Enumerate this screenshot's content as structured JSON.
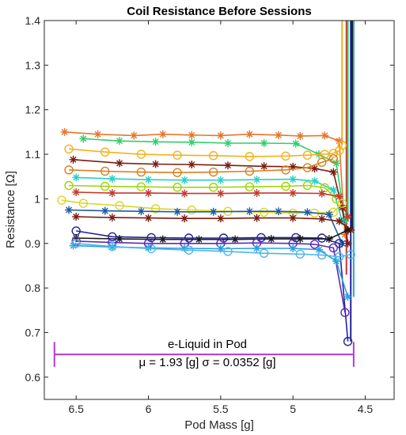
{
  "chart_data": {
    "type": "line",
    "title": "Coil Resistance Before Sessions",
    "xlabel": "Pod Mass [g]",
    "ylabel": "Resistance [Ω]",
    "x_reversed": true,
    "xlim": [
      4.3,
      6.72
    ],
    "ylim": [
      0.55,
      1.4
    ],
    "xticks": [
      {
        "value": 6.5,
        "label": "6.5"
      },
      {
        "value": 6.0,
        "label": "6"
      },
      {
        "value": 5.5,
        "label": "5.5"
      },
      {
        "value": 5.0,
        "label": "5"
      },
      {
        "value": 4.5,
        "label": "4.5"
      }
    ],
    "yticks": [
      {
        "value": 0.6,
        "label": "0.6"
      },
      {
        "value": 0.7,
        "label": "0.7"
      },
      {
        "value": 0.8,
        "label": "0.8"
      },
      {
        "value": 0.9,
        "label": "0.9"
      },
      {
        "value": 1.0,
        "label": "1"
      },
      {
        "value": 1.1,
        "label": "1.1"
      },
      {
        "value": 1.2,
        "label": "1.2"
      },
      {
        "value": 1.3,
        "label": "1.3"
      },
      {
        "value": 1.4,
        "label": "1.4"
      }
    ],
    "grid": false,
    "series": [
      {
        "color": "#e8762b",
        "marker": "star",
        "x": [
          6.58,
          6.35,
          6.1,
          5.9,
          5.7,
          5.5,
          5.3,
          5.1,
          4.95,
          4.78,
          4.68,
          4.64
        ],
        "y": [
          1.15,
          1.145,
          1.142,
          1.145,
          1.143,
          1.142,
          1.145,
          1.143,
          1.141,
          1.142,
          1.13,
          0.92
        ]
      },
      {
        "color": "#2fcf6a",
        "marker": "star",
        "x": [
          6.45,
          6.2,
          5.95,
          5.7,
          5.45,
          5.2,
          4.98,
          4.82,
          4.7,
          4.64
        ],
        "y": [
          1.135,
          1.13,
          1.128,
          1.127,
          1.125,
          1.125,
          1.124,
          1.1,
          1.08,
          0.95
        ]
      },
      {
        "color": "#f2b21c",
        "marker": "circle",
        "x": [
          6.55,
          6.3,
          6.05,
          5.8,
          5.55,
          5.3,
          5.05,
          4.9,
          4.78,
          4.72,
          4.68,
          4.66
        ],
        "y": [
          1.112,
          1.105,
          1.1,
          1.098,
          1.097,
          1.095,
          1.096,
          1.098,
          1.1,
          1.102,
          1.108,
          1.12
        ]
      },
      {
        "color": "#7a1c10",
        "marker": "star",
        "x": [
          6.52,
          6.2,
          5.95,
          5.7,
          5.45,
          5.2,
          5.0,
          4.85,
          4.72,
          4.66,
          4.62
        ],
        "y": [
          1.088,
          1.08,
          1.078,
          1.077,
          1.075,
          1.073,
          1.072,
          1.068,
          1.06,
          0.98,
          0.9
        ]
      },
      {
        "color": "#d97f1e",
        "marker": "circle",
        "x": [
          6.55,
          6.3,
          6.05,
          5.8,
          5.55,
          5.3,
          5.05,
          4.9,
          4.8,
          4.72
        ],
        "y": [
          1.065,
          1.062,
          1.06,
          1.059,
          1.06,
          1.062,
          1.065,
          1.07,
          1.082,
          1.09
        ]
      },
      {
        "color": "#27d0c6",
        "marker": "star",
        "x": [
          6.5,
          6.25,
          6.0,
          5.75,
          5.5,
          5.25,
          5.0,
          4.85,
          4.72,
          4.66
        ],
        "y": [
          1.048,
          1.045,
          1.043,
          1.042,
          1.042,
          1.043,
          1.044,
          1.04,
          1.02,
          0.95
        ]
      },
      {
        "color": "#a2d40c",
        "marker": "circle",
        "x": [
          6.55,
          6.3,
          6.05,
          5.8,
          5.55,
          5.3,
          5.05,
          4.9,
          4.78,
          4.7
        ],
        "y": [
          1.03,
          1.028,
          1.027,
          1.026,
          1.026,
          1.027,
          1.028,
          1.03,
          1.025,
          1.0
        ]
      },
      {
        "color": "#c6382c",
        "marker": "star",
        "x": [
          6.5,
          6.25,
          6.0,
          5.75,
          5.5,
          5.25,
          5.0,
          4.8,
          4.68,
          4.62
        ],
        "y": [
          1.015,
          1.013,
          1.013,
          1.012,
          1.012,
          1.013,
          1.013,
          1.012,
          1.005,
          0.96
        ]
      },
      {
        "color": "#d9d62a",
        "marker": "circle",
        "x": [
          6.6,
          6.45,
          6.2,
          5.95,
          5.7,
          5.45,
          5.2,
          5.0,
          4.85,
          4.72,
          4.66
        ],
        "y": [
          0.997,
          0.99,
          0.985,
          0.978,
          0.975,
          0.972,
          0.97,
          0.968,
          0.968,
          0.97,
          0.99
        ]
      },
      {
        "color": "#1b5aa8",
        "marker": "star",
        "x": [
          6.55,
          6.3,
          6.05,
          5.8,
          5.55,
          5.3,
          5.1,
          4.9,
          4.75,
          4.66
        ],
        "y": [
          0.975,
          0.973,
          0.972,
          0.971,
          0.971,
          0.972,
          0.972,
          0.97,
          0.965,
          0.9
        ]
      },
      {
        "color": "#7a1c10",
        "marker": "star",
        "x": [
          6.5,
          6.25,
          6.0,
          5.75,
          5.5,
          5.25,
          5.0,
          4.8,
          4.68,
          4.6
        ],
        "y": [
          0.96,
          0.958,
          0.957,
          0.956,
          0.956,
          0.957,
          0.957,
          0.955,
          0.95,
          0.93
        ]
      },
      {
        "color": "#23239a",
        "marker": "circle",
        "x": [
          6.5,
          6.25,
          5.98,
          5.72,
          5.48,
          5.22,
          4.98,
          4.8,
          4.68,
          4.62
        ],
        "y": [
          0.928,
          0.915,
          0.913,
          0.912,
          0.912,
          0.913,
          0.913,
          0.912,
          0.9,
          0.68
        ]
      },
      {
        "color": "#1a1a1a",
        "marker": "star",
        "x": [
          6.5,
          6.2,
          5.9,
          5.65,
          5.4,
          5.15,
          4.95,
          4.75,
          4.62
        ],
        "y": [
          0.912,
          0.91,
          0.909,
          0.909,
          0.909,
          0.91,
          0.91,
          0.91,
          0.93
        ]
      },
      {
        "color": "#5a2ab8",
        "marker": "circle",
        "x": [
          6.5,
          6.25,
          6.0,
          5.75,
          5.5,
          5.25,
          5.0,
          4.85,
          4.72,
          4.64
        ],
        "y": [
          0.905,
          0.902,
          0.9,
          0.9,
          0.9,
          0.901,
          0.9,
          0.898,
          0.89,
          0.745
        ]
      },
      {
        "color": "#2aa0e0",
        "marker": "star",
        "x": [
          6.52,
          6.25,
          6.0,
          5.75,
          5.5,
          5.25,
          5.0,
          4.82,
          4.7,
          4.62
        ],
        "y": [
          0.895,
          0.892,
          0.89,
          0.889,
          0.888,
          0.889,
          0.889,
          0.886,
          0.86,
          0.78
        ]
      },
      {
        "color": "#4fb6e8",
        "marker": "circle",
        "x": [
          6.5,
          6.25,
          5.98,
          5.72,
          5.45,
          5.2,
          4.95,
          4.8,
          4.68,
          4.6
        ],
        "y": [
          0.9,
          0.893,
          0.888,
          0.885,
          0.882,
          0.878,
          0.876,
          0.874,
          0.87,
          0.875
        ]
      }
    ],
    "vertical_rises": [
      {
        "color": "#f2b21c",
        "x": 4.66,
        "y": [
          1.12,
          1.4
        ]
      },
      {
        "color": "#c6382c",
        "x": 4.63,
        "y": [
          0.83,
          1.4
        ]
      },
      {
        "color": "#2fcf6a",
        "x": 4.62,
        "y": [
          0.95,
          1.4
        ]
      },
      {
        "color": "#23239a",
        "x": 4.6,
        "y": [
          0.68,
          1.4
        ]
      },
      {
        "color": "#1a1a1a",
        "x": 4.59,
        "y": [
          0.93,
          1.4
        ]
      },
      {
        "color": "#2aa0e0",
        "x": 4.58,
        "y": [
          0.78,
          1.4
        ]
      }
    ],
    "annotation": {
      "color": "#b23ad6",
      "x_range": [
        6.65,
        4.58
      ],
      "y": 0.651,
      "cap_half_height": 0.028,
      "text_line1": "e-Liquid in Pod",
      "text_line2": "μ = 1.93 [g] σ = 0.0352 [g]"
    }
  }
}
